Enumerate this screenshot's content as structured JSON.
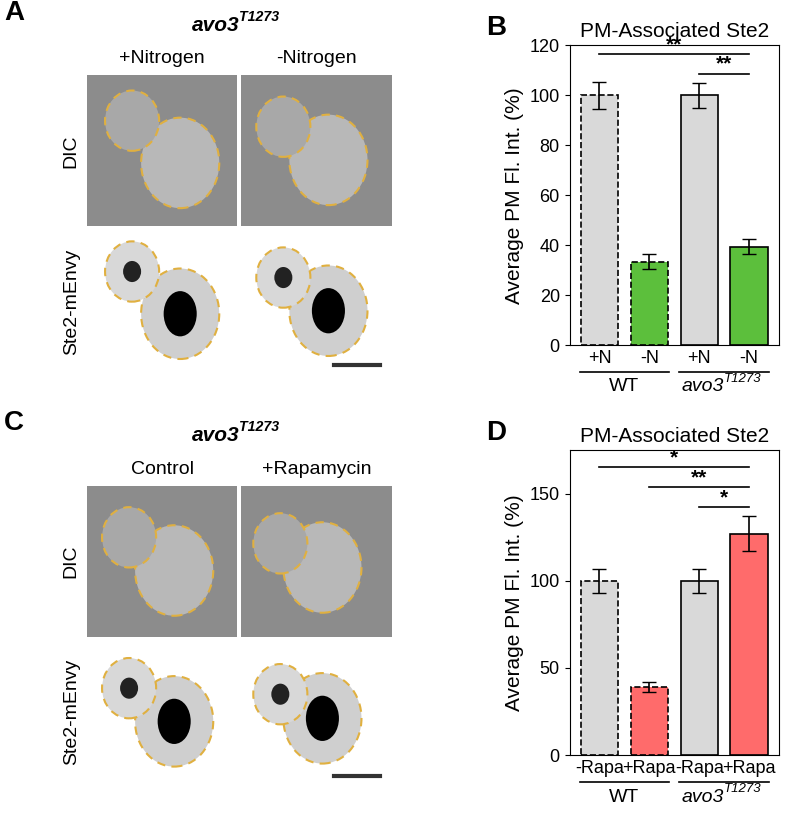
{
  "image_panels": [
    {
      "panel": "A",
      "title": {
        "base": "avo3",
        "superscript": "T1273"
      },
      "columns": [
        "+Nitrogen",
        "-Nitrogen"
      ],
      "rows": [
        "DIC",
        "Ste2-mEnvy"
      ]
    },
    {
      "panel": "C",
      "title": {
        "base": "avo3",
        "superscript": "T1273"
      },
      "columns": [
        "Control",
        "+Rapamycin"
      ],
      "rows": [
        "DIC",
        "Ste2-mEnvy"
      ]
    }
  ],
  "chart_data": [
    {
      "panel": "B",
      "type": "bar",
      "title": "PM-Associated Ste2",
      "y_label": "Average PM Fl. Int. (%)",
      "ylim": [
        0,
        120
      ],
      "yticks": [
        0,
        20,
        40,
        60,
        80,
        100,
        120
      ],
      "groups": [
        {
          "label": "WT",
          "categories": [
            "+N",
            "-N"
          ],
          "values": [
            100,
            33.5
          ],
          "errors": [
            5.5,
            3
          ],
          "colors": [
            "#d9d9d9",
            "#5cbf3c"
          ],
          "line_style": "dashed"
        },
        {
          "label": {
            "base": "avo3",
            "superscript": "T1273"
          },
          "categories": [
            "+N",
            "-N"
          ],
          "values": [
            100,
            39.5
          ],
          "errors": [
            5,
            3
          ],
          "colors": [
            "#d9d9d9",
            "#5cbf3c"
          ],
          "line_style": "solid"
        }
      ],
      "significance": [
        {
          "from": 2,
          "to": 3,
          "label": "**"
        },
        {
          "from": 0,
          "to": 3,
          "label": "**"
        }
      ]
    },
    {
      "panel": "D",
      "type": "bar",
      "title": "PM-Associated Ste2",
      "y_label": "Average PM Fl. Int. (%)",
      "ylim": [
        0,
        175
      ],
      "yticks": [
        0,
        50,
        100,
        150
      ],
      "groups": [
        {
          "label": "WT",
          "categories": [
            "-Rapa",
            "+Rapa"
          ],
          "values": [
            100,
            39
          ],
          "errors": [
            7,
            3
          ],
          "colors": [
            "#d9d9d9",
            "#ff6b6b"
          ],
          "line_style": "dashed"
        },
        {
          "label": {
            "base": "avo3",
            "superscript": "T1273"
          },
          "categories": [
            "-Rapa",
            "+Rapa"
          ],
          "values": [
            100,
            127
          ],
          "errors": [
            7,
            10
          ],
          "colors": [
            "#d9d9d9",
            "#ff6b6b"
          ],
          "line_style": "solid"
        }
      ],
      "significance": [
        {
          "from": 2,
          "to": 3,
          "label": "*"
        },
        {
          "from": 1,
          "to": 3,
          "label": "**"
        },
        {
          "from": 0,
          "to": 3,
          "label": "*"
        }
      ]
    }
  ]
}
